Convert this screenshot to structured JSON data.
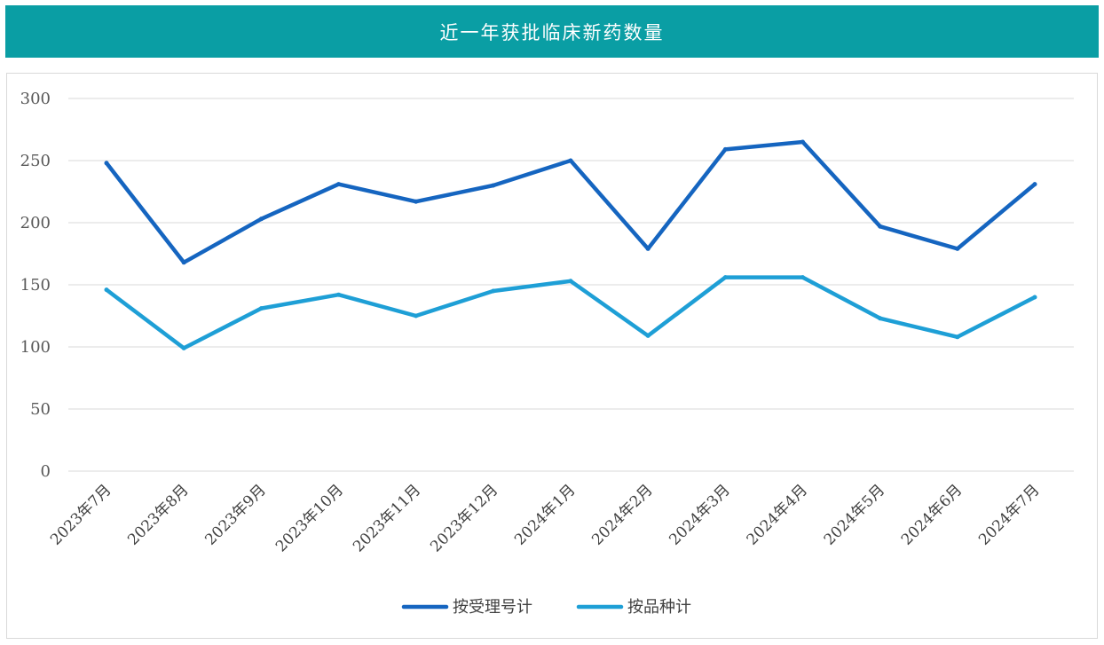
{
  "chart_data": {
    "type": "line",
    "title": "近一年获批临床新药数量",
    "categories": [
      "2023年7月",
      "2023年8月",
      "2023年9月",
      "2023年10月",
      "2023年11月",
      "2023年12月",
      "2024年1月",
      "2024年2月",
      "2024年3月",
      "2024年4月",
      "2024年5月",
      "2024年6月",
      "2024年7月"
    ],
    "series": [
      {
        "name": "按受理号计",
        "color": "#1565c0",
        "values": [
          248,
          168,
          203,
          231,
          217,
          230,
          250,
          179,
          259,
          265,
          197,
          179,
          231
        ]
      },
      {
        "name": "按品种计",
        "color": "#1e9fd6",
        "values": [
          146,
          99,
          131,
          142,
          125,
          145,
          153,
          109,
          156,
          156,
          123,
          108,
          140
        ]
      }
    ],
    "ylim": [
      0,
      300
    ],
    "yticks": [
      0,
      50,
      100,
      150,
      200,
      250,
      300
    ],
    "grid": true,
    "legend_position": "bottom-center"
  }
}
